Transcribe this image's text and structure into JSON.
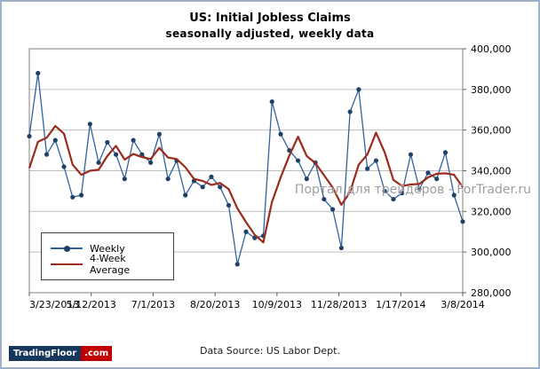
{
  "chart": {
    "title": "US: Initial Jobless Claims",
    "subtitle": "seasonally adjusted, weekly data",
    "watermark": "Портал для трейдеров - ForTrader.ru"
  },
  "footer": {
    "source": "Data Source: US Labor Dept.",
    "logo_main": "TradingFloor",
    "logo_suffix": ".com"
  },
  "chart_data": {
    "type": "line",
    "title": "US: Initial Jobless Claims",
    "subtitle": "seasonally adjusted, weekly data",
    "frequency": "weekly",
    "x_start": "3/23/2013",
    "x_end": "3/8/2014",
    "x_tick_labels": [
      "3/23/2013",
      "5/12/2013",
      "7/1/2013",
      "8/20/2013",
      "10/9/2013",
      "11/28/2013",
      "1/17/2014",
      "3/8/2014"
    ],
    "y_tick_labels": [
      "280,000",
      "300,000",
      "320,000",
      "340,000",
      "360,000",
      "380,000",
      "400,000"
    ],
    "ylim": [
      280000,
      400000
    ],
    "y_step": 20000,
    "grid": true,
    "legend_position": "bottom-left-inside",
    "legend": [
      {
        "name": "Weekly",
        "color": "#31639C",
        "marker_color": "#1F4168",
        "marker": true
      },
      {
        "name": "4-Week Average",
        "color": "#9A2B1D",
        "marker": false
      }
    ],
    "series": [
      {
        "name": "Weekly",
        "values": [
          357000,
          388000,
          348000,
          355000,
          342000,
          327000,
          328000,
          363000,
          344000,
          354000,
          348000,
          336000,
          355000,
          348000,
          344000,
          358000,
          336000,
          345000,
          328000,
          335000,
          332000,
          337000,
          332000,
          323000,
          294000,
          310000,
          307000,
          308000,
          374000,
          358000,
          350000,
          345000,
          336000,
          344000,
          326000,
          321000,
          302000,
          369000,
          380000,
          341000,
          345000,
          330000,
          326000,
          329000,
          348000,
          331000,
          339000,
          336000,
          349000,
          328000,
          315000
        ]
      },
      {
        "name": "4-Week Average",
        "values": [
          341250,
          354250,
          356250,
          362000,
          358250,
          343000,
          338000,
          340000,
          340500,
          347250,
          352250,
          345500,
          348250,
          346750,
          345750,
          351250,
          346500,
          345750,
          341750,
          336000,
          335000,
          333000,
          334000,
          331000,
          321500,
          314750,
          308500,
          304750,
          324750,
          336750,
          347500,
          356750,
          347250,
          343750,
          337750,
          331750,
          323250,
          329500,
          343000,
          348000,
          358750,
          349000,
          335500,
          332500,
          333250,
          333500,
          336750,
          338500,
          338750,
          338000,
          332000
        ]
      }
    ]
  }
}
